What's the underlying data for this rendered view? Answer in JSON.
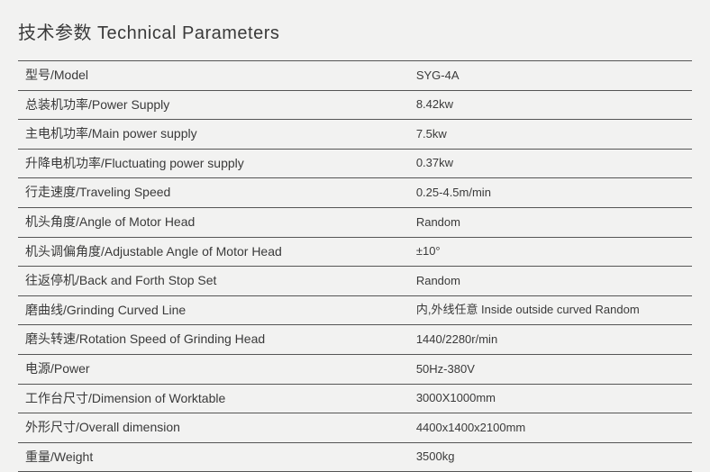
{
  "title": "技术参数  Technical Parameters",
  "rows": [
    {
      "label": "型号/Model",
      "value": "SYG-4A"
    },
    {
      "label": "总装机功率/Power Supply",
      "value": "8.42kw"
    },
    {
      "label": "主电机功率/Main power supply",
      "value": "7.5kw"
    },
    {
      "label": "升降电机功率/Fluctuating power supply",
      "value": "0.37kw"
    },
    {
      "label": "行走速度/Traveling Speed",
      "value": "0.25-4.5m/min"
    },
    {
      "label": "机头角度/Angle of Motor Head",
      "value": "Random"
    },
    {
      "label": "机头调偏角度/Adjustable Angle of Motor Head",
      "value": "±10°"
    },
    {
      "label": "往返停机/Back and Forth Stop Set",
      "value": "Random"
    },
    {
      "label": "磨曲线/Grinding Curved Line",
      "value": "内,外线任意  Inside outside curved Random"
    },
    {
      "label": "磨头转速/Rotation Speed of Grinding Head",
      "value": "1440/2280r/min"
    },
    {
      "label": "电源/Power",
      "value": "50Hz-380V"
    },
    {
      "label": "工作台尺寸/Dimension of Worktable",
      "value": "3000X1000mm"
    },
    {
      "label": "外形尺寸/Overall dimension",
      "value": "4400x1400x2100mm"
    },
    {
      "label": "重量/Weight",
      "value": "3500kg"
    }
  ],
  "styles": {
    "background_color": "#f2f2f1",
    "text_color": "#3a3a3a",
    "divider_color": "#555555",
    "title_fontsize": 20,
    "row_fontsize": 14,
    "value_fontsize": 13,
    "label_col_width_pct": 58,
    "value_col_width_pct": 42
  }
}
